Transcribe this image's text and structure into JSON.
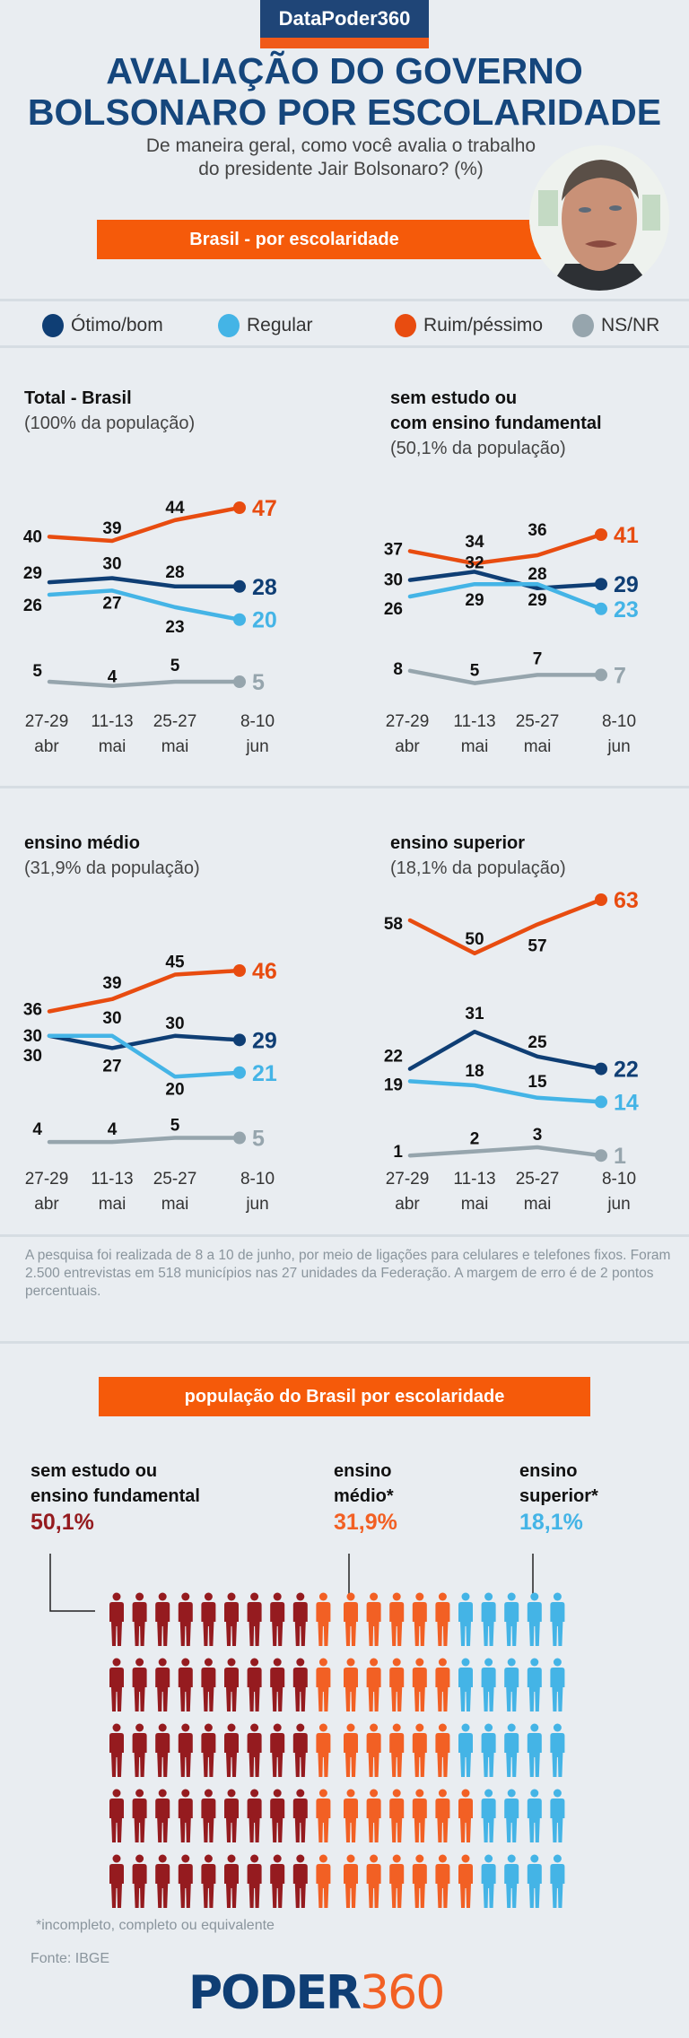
{
  "header": {
    "brand": "DataPoder360",
    "title_line1": "AVALIAÇÃO DO GOVERNO",
    "title_line2": "BOLSONARO POR ESCOLARIDADE",
    "subtitle_line1": "De maneira geral, como você avalia o trabalho",
    "subtitle_line2": "do presidente Jair Bolsonaro? (%)",
    "ribbon": "Brasil - por escolaridade",
    "photo_alt": "Jair Bolsonaro"
  },
  "colors": {
    "otimo_bom": "#0f3e74",
    "regular": "#44b4e6",
    "ruim_pessimo": "#e84c10",
    "ns_nr": "#96a5ad",
    "fundamental": "#951b1f",
    "medio": "#f26024",
    "superior": "#44b4e6",
    "brand_blue": "#1f4577",
    "brand_orange": "#f55a0a"
  },
  "legend": [
    {
      "key": "otimo_bom",
      "label": "Ótimo/bom"
    },
    {
      "key": "regular",
      "label": "Regular"
    },
    {
      "key": "ruim_pessimo",
      "label": "Ruim/péssimo"
    },
    {
      "key": "ns_nr",
      "label": "NS/NR"
    }
  ],
  "chart_data": [
    {
      "type": "line",
      "title": "Total - Brasil",
      "subtitle": "(100% da população)",
      "x": [
        "27-29 abr",
        "11-13 mai",
        "25-27 mai",
        "8-10 jun"
      ],
      "x_lines": [
        [
          "27-29",
          "abr"
        ],
        [
          "11-13",
          "mai"
        ],
        [
          "25-27",
          "mai"
        ],
        [
          "8-10",
          "jun"
        ]
      ],
      "series": [
        {
          "name": "Ruim/péssimo",
          "key": "ruim_pessimo",
          "values": [
            40,
            39,
            44,
            47
          ]
        },
        {
          "name": "Ótimo/bom",
          "key": "otimo_bom",
          "values": [
            29,
            30,
            28,
            28
          ]
        },
        {
          "name": "Regular",
          "key": "regular",
          "values": [
            26,
            27,
            23,
            20
          ]
        },
        {
          "name": "NS/NR",
          "key": "ns_nr",
          "values": [
            5,
            4,
            5,
            5
          ]
        }
      ]
    },
    {
      "type": "line",
      "title": "sem estudo ou\ncom ensino fundamental",
      "title_lines": [
        "sem estudo ou",
        "com ensino fundamental"
      ],
      "subtitle": "(50,1% da população)",
      "x": [
        "27-29 abr",
        "11-13 mai",
        "25-27 mai",
        "8-10 jun"
      ],
      "x_lines": [
        [
          "27-29",
          "abr"
        ],
        [
          "11-13",
          "mai"
        ],
        [
          "25-27",
          "mai"
        ],
        [
          "8-10",
          "jun"
        ]
      ],
      "series": [
        {
          "name": "Ruim/péssimo",
          "key": "ruim_pessimo",
          "values": [
            37,
            34,
            36,
            41
          ]
        },
        {
          "name": "Ótimo/bom",
          "key": "otimo_bom",
          "values": [
            30,
            32,
            28,
            29
          ]
        },
        {
          "name": "Regular",
          "key": "regular",
          "values": [
            26,
            29,
            29,
            23
          ]
        },
        {
          "name": "NS/NR",
          "key": "ns_nr",
          "values": [
            8,
            5,
            7,
            7
          ]
        }
      ]
    },
    {
      "type": "line",
      "title": "ensino médio",
      "subtitle": "(31,9% da população)",
      "x": [
        "27-29 abr",
        "11-13 mai",
        "25-27 mai",
        "8-10 jun"
      ],
      "x_lines": [
        [
          "27-29",
          "abr"
        ],
        [
          "11-13",
          "mai"
        ],
        [
          "25-27",
          "mai"
        ],
        [
          "8-10",
          "jun"
        ]
      ],
      "series": [
        {
          "name": "Ruim/péssimo",
          "key": "ruim_pessimo",
          "values": [
            36,
            39,
            45,
            46
          ]
        },
        {
          "name": "Ótimo/bom",
          "key": "otimo_bom",
          "values": [
            30,
            27,
            30,
            29
          ]
        },
        {
          "name": "Regular",
          "key": "regular",
          "values": [
            30,
            30,
            20,
            21
          ]
        },
        {
          "name": "NS/NR",
          "key": "ns_nr",
          "values": [
            4,
            4,
            5,
            5
          ]
        }
      ]
    },
    {
      "type": "line",
      "title": "ensino superior",
      "subtitle": "(18,1% da população)",
      "x": [
        "27-29 abr",
        "11-13 mai",
        "25-27 mai",
        "8-10 jun"
      ],
      "x_lines": [
        [
          "27-29",
          "abr"
        ],
        [
          "11-13",
          "mai"
        ],
        [
          "25-27",
          "mai"
        ],
        [
          "8-10",
          "jun"
        ]
      ],
      "series": [
        {
          "name": "Ruim/péssimo",
          "key": "ruim_pessimo",
          "values": [
            58,
            50,
            57,
            63
          ]
        },
        {
          "name": "Ótimo/bom",
          "key": "otimo_bom",
          "values": [
            22,
            31,
            25,
            22
          ]
        },
        {
          "name": "Regular",
          "key": "regular",
          "values": [
            19,
            18,
            15,
            14
          ]
        },
        {
          "name": "NS/NR",
          "key": "ns_nr",
          "values": [
            1,
            2,
            3,
            1
          ]
        }
      ]
    },
    {
      "type": "pictogram",
      "title": "população do Brasil por escolaridade",
      "categories": [
        {
          "key": "fundamental",
          "label_lines": [
            "sem estudo ou",
            "ensino fundamental"
          ],
          "percent_label": "50,1%",
          "value": 50.1
        },
        {
          "key": "medio",
          "label_lines": [
            "ensino",
            "médio*"
          ],
          "percent_label": "31,9%",
          "value": 31.9
        },
        {
          "key": "superior",
          "label_lines": [
            "ensino",
            "superior*"
          ],
          "percent_label": "18,1%",
          "value": 18.1
        }
      ],
      "rows": [
        {
          "fundamental": 9,
          "medio": 6,
          "superior": 5
        },
        {
          "fundamental": 9,
          "medio": 6,
          "superior": 5
        },
        {
          "fundamental": 9,
          "medio": 6,
          "superior": 5
        },
        {
          "fundamental": 9,
          "medio": 7,
          "superior": 4
        },
        {
          "fundamental": 9,
          "medio": 7,
          "superior": 4
        }
      ]
    }
  ],
  "note": "A pesquisa foi realizada de 8 a 10 de junho, por meio de ligações para celulares e telefones fixos. Foram 2.500 entrevistas em 518 municípios nas 27 unidades da Federação. A margem de erro é de 2 pontos percentuais.",
  "population": {
    "ribbon": "população do Brasil por escolaridade",
    "footnote": "*incompleto, completo  ou equivalente",
    "source": "Fonte: IBGE"
  },
  "footer": {
    "logo_part1": "PODER",
    "logo_part2": "360"
  }
}
